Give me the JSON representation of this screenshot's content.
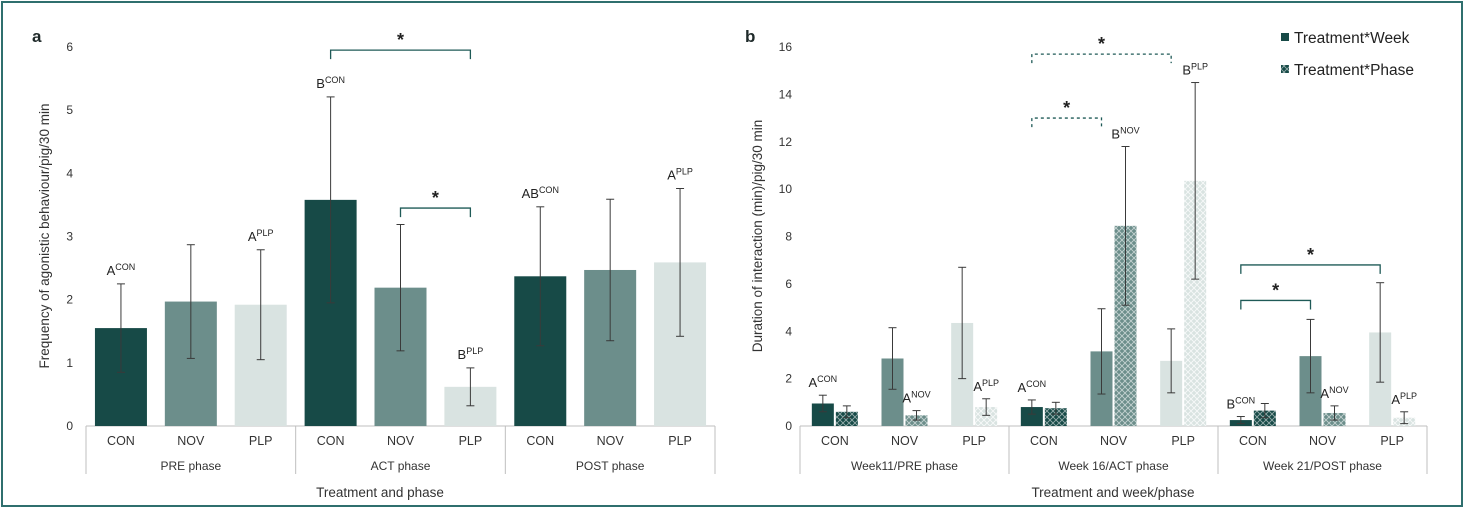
{
  "colors": {
    "CON": "#174a47",
    "NOV": "#6c8e8b",
    "PLP": "#d9e3e1",
    "frame": "#2f6f6e",
    "bracket": "#1f5a57"
  },
  "legend": [
    "Treatment*Week",
    "Treatment*Phase"
  ],
  "chart_data": [
    {
      "panel": "a",
      "type": "bar",
      "ylabel": "Frequency of agonistic behaviour/pig/30 min",
      "xlabel": "Treatment and phase",
      "ylim": [
        0,
        6
      ],
      "yticks": [
        "0",
        "1",
        "2",
        "3",
        "4",
        "5",
        "6"
      ],
      "groups": [
        "PRE phase",
        "ACT phase",
        "POST phase"
      ],
      "categories": [
        "CON",
        "NOV",
        "PLP"
      ],
      "values": [
        [
          1.55,
          1.97,
          1.92
        ],
        [
          3.58,
          2.19,
          0.62
        ],
        [
          2.37,
          2.47,
          2.59
        ]
      ],
      "errors": [
        [
          0.7,
          0.9,
          0.87
        ],
        [
          1.63,
          1.0,
          0.3
        ],
        [
          1.1,
          1.12,
          1.17
        ]
      ],
      "labels": [
        {
          "group": 0,
          "bar": 0,
          "base": "A",
          "sup": "CON"
        },
        {
          "group": 0,
          "bar": 2,
          "base": "A",
          "sup": "PLP"
        },
        {
          "group": 1,
          "bar": 0,
          "base": "B",
          "sup": "CON"
        },
        {
          "group": 1,
          "bar": 2,
          "base": "B",
          "sup": "PLP"
        },
        {
          "group": 2,
          "bar": 0,
          "base": "AB",
          "sup": "CON"
        },
        {
          "group": 2,
          "bar": 2,
          "base": "A",
          "sup": "PLP"
        }
      ],
      "significance": [
        {
          "from": [
            1,
            0
          ],
          "to": [
            1,
            2
          ],
          "y": 5.95,
          "label": "*"
        },
        {
          "from": [
            1,
            1
          ],
          "to": [
            1,
            2
          ],
          "y": 3.45,
          "label": "*"
        }
      ]
    },
    {
      "panel": "b",
      "type": "bar",
      "ylabel": "Duration of interaction (min)/pig/30 min",
      "xlabel": "Treatment and week/phase",
      "ylim": [
        0,
        16
      ],
      "yticks": [
        "0",
        "2",
        "4",
        "6",
        "8",
        "10",
        "12",
        "14",
        "16"
      ],
      "groups": [
        "Week11/PRE phase",
        "Week 16/ACT phase",
        "Week 21/POST phase"
      ],
      "categories": [
        "CON",
        "NOV",
        "PLP"
      ],
      "series": [
        {
          "name": "Treatment*Week",
          "values": [
            [
              0.95,
              2.85,
              4.35
            ],
            [
              0.8,
              3.15,
              2.75
            ],
            [
              0.25,
              2.95,
              3.95
            ]
          ],
          "errors": [
            [
              0.35,
              1.3,
              2.35
            ],
            [
              0.3,
              1.8,
              1.35
            ],
            [
              0.15,
              1.55,
              2.1
            ]
          ]
        },
        {
          "name": "Treatment*Phase",
          "values": [
            [
              0.6,
              0.45,
              0.8
            ],
            [
              0.75,
              8.45,
              10.35
            ],
            [
              0.65,
              0.55,
              0.35
            ]
          ],
          "errors": [
            [
              0.25,
              0.2,
              0.35
            ],
            [
              0.25,
              3.35,
              4.15
            ],
            [
              0.3,
              0.3,
              0.25
            ]
          ]
        }
      ],
      "labels": [
        {
          "group": 0,
          "bar": 0,
          "series": 0,
          "base": "A",
          "sup": "CON"
        },
        {
          "group": 0,
          "bar": 1,
          "series": 1,
          "base": "A",
          "sup": "NOV"
        },
        {
          "group": 0,
          "bar": 2,
          "series": 1,
          "base": "A",
          "sup": "PLP"
        },
        {
          "group": 1,
          "bar": 0,
          "series": 0,
          "base": "A",
          "sup": "CON"
        },
        {
          "group": 1,
          "bar": 1,
          "series": 1,
          "base": "B",
          "sup": "NOV"
        },
        {
          "group": 1,
          "bar": 2,
          "series": 1,
          "base": "B",
          "sup": "PLP"
        },
        {
          "group": 2,
          "bar": 0,
          "series": 0,
          "base": "B",
          "sup": "CON"
        },
        {
          "group": 2,
          "bar": 1,
          "series": 1,
          "base": "A",
          "sup": "NOV"
        },
        {
          "group": 2,
          "bar": 2,
          "series": 1,
          "base": "A",
          "sup": "PLP"
        }
      ],
      "significance": [
        {
          "from": [
            1,
            0
          ],
          "to": [
            1,
            1
          ],
          "y": 13.0,
          "label": "*",
          "dashed": true
        },
        {
          "from": [
            1,
            0
          ],
          "to": [
            1,
            2
          ],
          "y": 15.7,
          "label": "*",
          "dashed": true
        },
        {
          "from": [
            2,
            0
          ],
          "to": [
            2,
            1
          ],
          "y": 5.3,
          "label": "*",
          "dashed": false
        },
        {
          "from": [
            2,
            0
          ],
          "to": [
            2,
            2
          ],
          "y": 6.8,
          "label": "*",
          "dashed": false
        }
      ]
    }
  ]
}
